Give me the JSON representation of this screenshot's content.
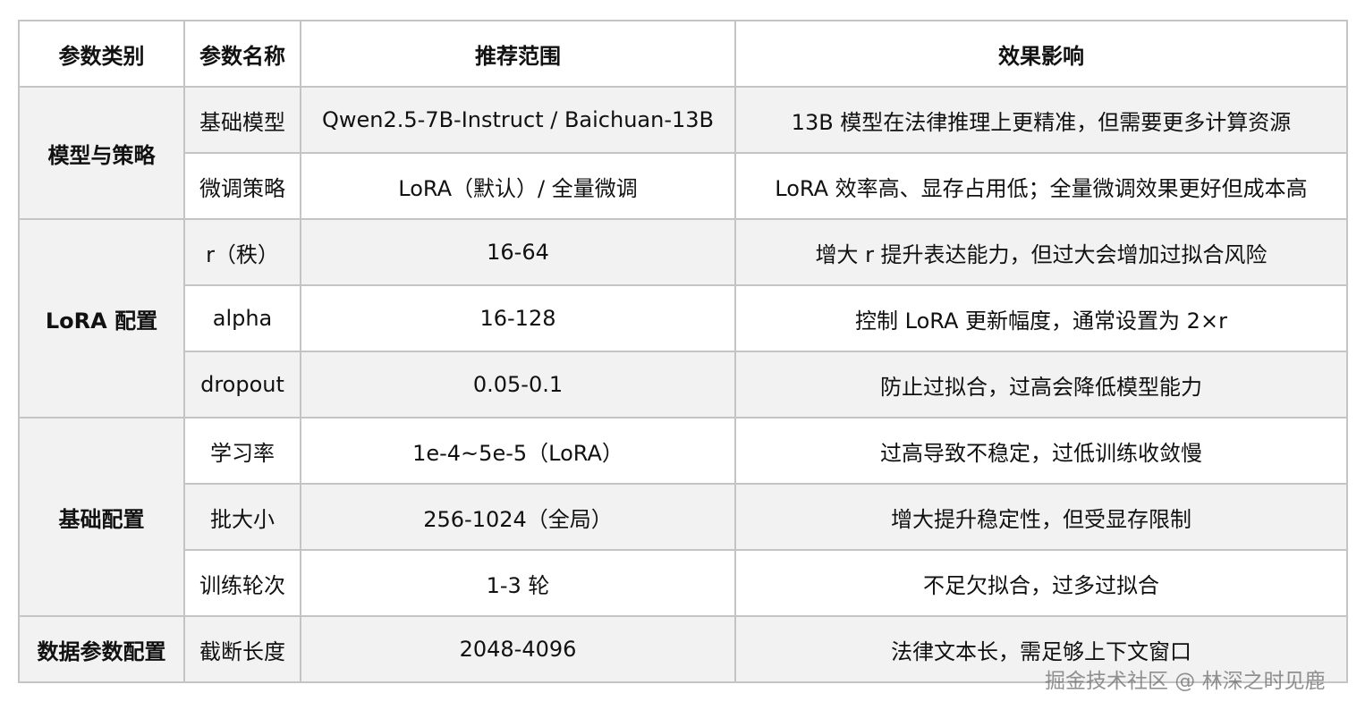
{
  "headers": [
    "参数类别",
    "参数名称",
    "推荐范围",
    "效果影响"
  ],
  "groups": [
    {
      "category": "模型与策略",
      "rows": [
        {
          "name": "基础模型",
          "range": "Qwen2.5-7B-Instruct / Baichuan-13B",
          "effect": "13B 模型在法律推理上更精准，但需要更多计算资源"
        },
        {
          "name": "微调策略",
          "range": "LoRA（默认）/ 全量微调",
          "effect": "LoRA 效率高、显存占用低；全量微调效果更好但成本高"
        }
      ]
    },
    {
      "category": "LoRA 配置",
      "rows": [
        {
          "name": "r（秩）",
          "range": "16-64",
          "effect": "增大 r 提升表达能力，但过大会增加过拟合风险"
        },
        {
          "name": "alpha",
          "range": "16-128",
          "effect": "控制 LoRA 更新幅度，通常设置为 2×r"
        },
        {
          "name": "dropout",
          "range": "0.05-0.1",
          "effect": "防止过拟合，过高会降低模型能力"
        }
      ]
    },
    {
      "category": "基础配置",
      "rows": [
        {
          "name": "学习率",
          "range": "1e-4~5e-5（LoRA）",
          "effect": "过高导致不稳定，过低训练收敛慢"
        },
        {
          "name": "批大小",
          "range": "256-1024（全局）",
          "effect": "增大提升稳定性，但受显存限制"
        },
        {
          "name": "训练轮次",
          "range": "1-3 轮",
          "effect": "不足欠拟合，过多过拟合"
        }
      ]
    },
    {
      "category": "数据参数配置",
      "rows": [
        {
          "name": "截断长度",
          "range": "2048-4096",
          "effect": "法律文本长，需足够上下文窗口"
        }
      ]
    }
  ],
  "watermark": "掘金技术社区 @ 林深之时见鹿",
  "colors": {
    "border": "#c4c4c4",
    "shaded": "#f2f2f2"
  }
}
